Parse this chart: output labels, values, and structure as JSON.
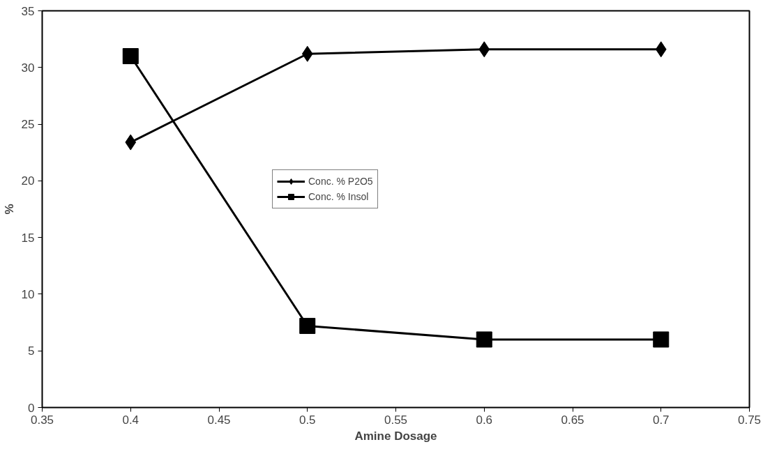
{
  "chart_data": {
    "type": "line",
    "xlabel": "Amine Dosage",
    "ylabel": "%",
    "x": [
      0.4,
      0.5,
      0.6,
      0.7
    ],
    "series": [
      {
        "name": "Conc. % P2O5",
        "color": "#000000",
        "marker": "diamond",
        "values": [
          23.4,
          31.2,
          31.6,
          31.6
        ]
      },
      {
        "name": "Conc. % Insol",
        "color": "#000000",
        "marker": "square",
        "values": [
          31.0,
          7.2,
          6.0,
          6.0
        ]
      }
    ],
    "xlim": [
      0.35,
      0.75
    ],
    "xticks": [
      0.35,
      0.4,
      0.45,
      0.5,
      0.55,
      0.6,
      0.65,
      0.7,
      0.75
    ],
    "ylim": [
      0,
      35
    ],
    "yticks": [
      0,
      5,
      10,
      15,
      20,
      25,
      30,
      35
    ],
    "grid": false,
    "legend": "center",
    "line_style": "solid"
  }
}
